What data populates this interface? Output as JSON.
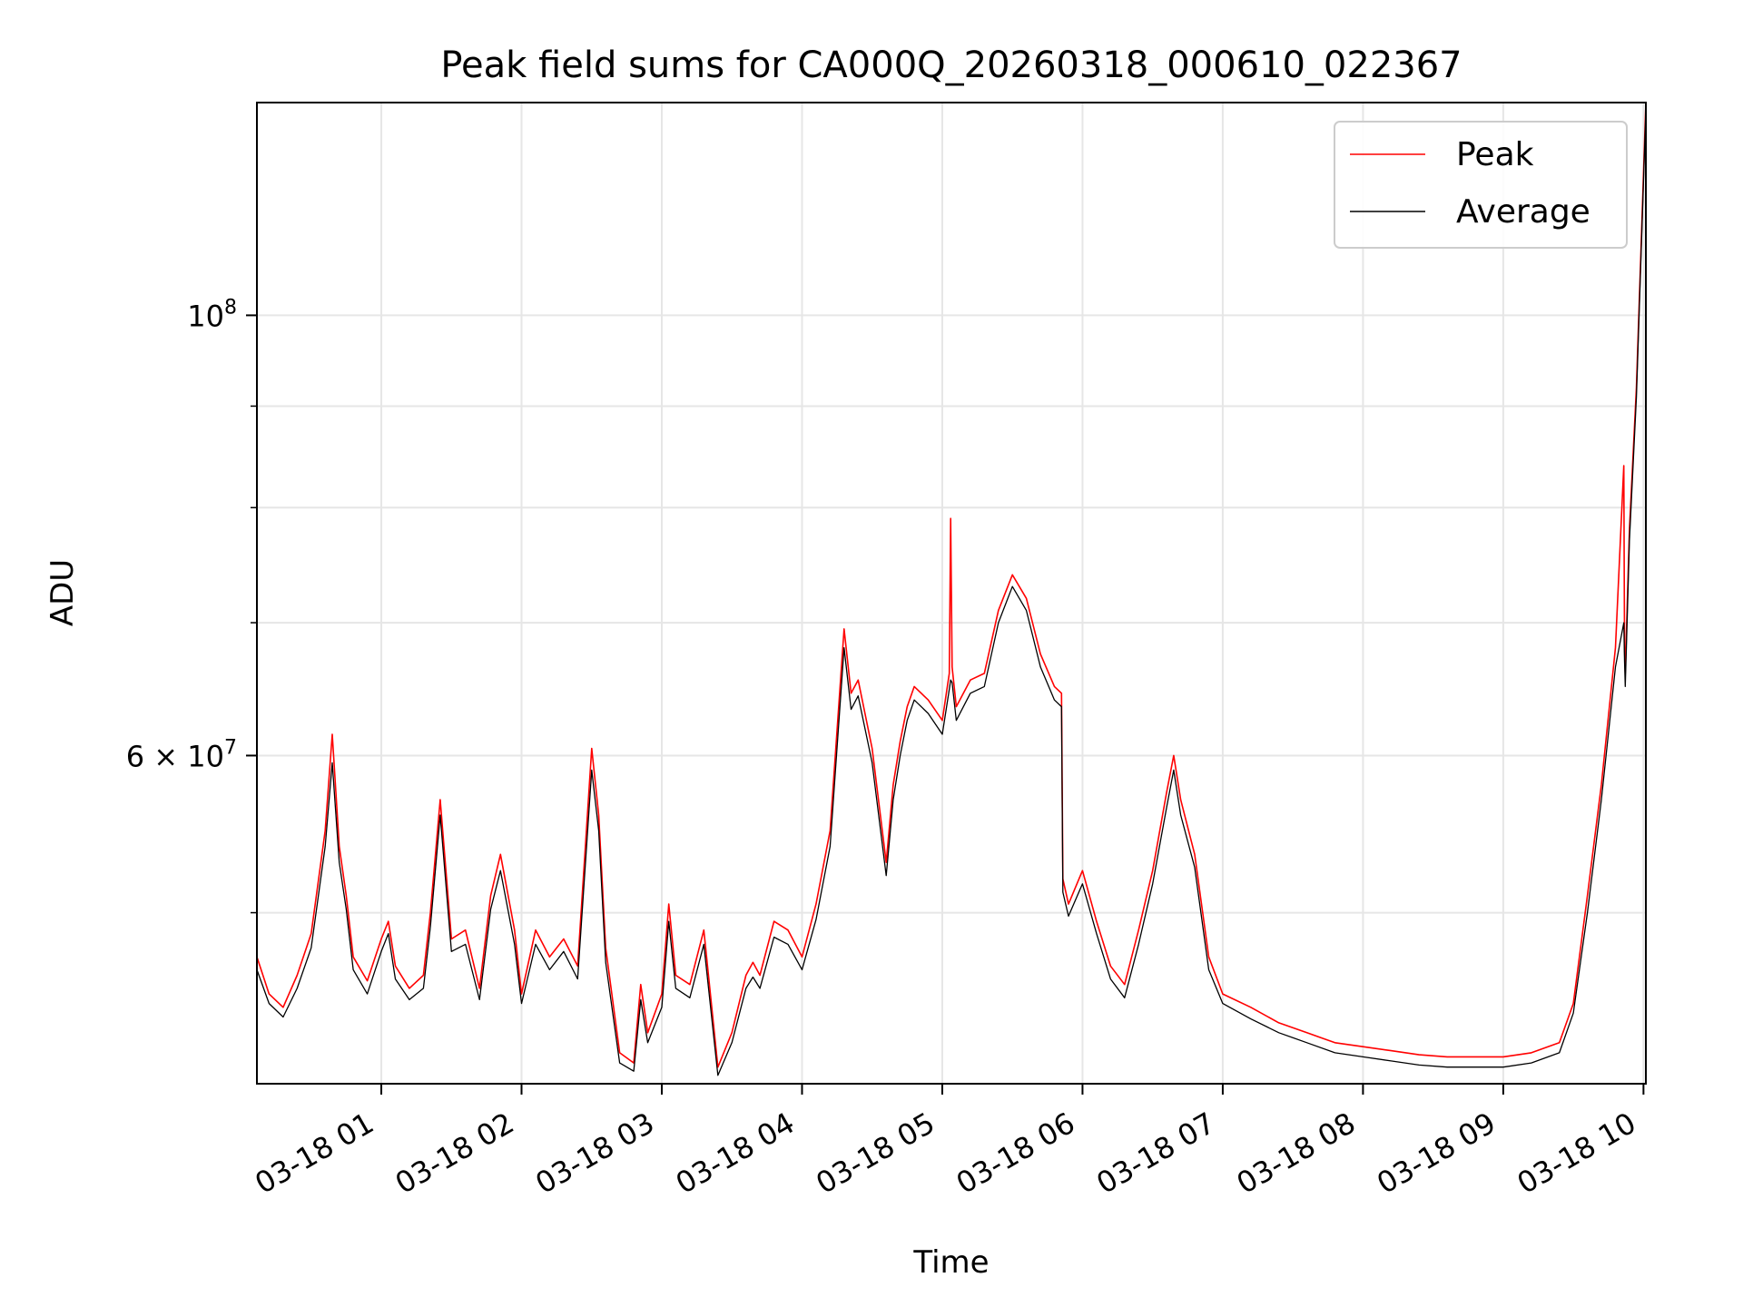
{
  "chart_data": {
    "type": "line",
    "title": "Peak field sums for CA000Q_20260318_000610_022367",
    "xlabel": "Time",
    "ylabel": "ADU",
    "y_scale": "log",
    "ylim": [
      41000000,
      128000000
    ],
    "xlim_hours": [
      0.113,
      10.017
    ],
    "grid": true,
    "legend_position": "upper right",
    "x_ticks": [
      {
        "hour": 1,
        "label": "03-18 01"
      },
      {
        "hour": 2,
        "label": "03-18 02"
      },
      {
        "hour": 3,
        "label": "03-18 03"
      },
      {
        "hour": 4,
        "label": "03-18 04"
      },
      {
        "hour": 5,
        "label": "03-18 05"
      },
      {
        "hour": 6,
        "label": "03-18 06"
      },
      {
        "hour": 7,
        "label": "03-18 07"
      },
      {
        "hour": 8,
        "label": "03-18 08"
      },
      {
        "hour": 9,
        "label": "03-18 09"
      },
      {
        "hour": 10,
        "label": "03-18 10"
      }
    ],
    "y_major_ticks": [
      {
        "value": 60000000,
        "base": "6 × 10",
        "exp": "7"
      },
      {
        "value": 100000000,
        "base": "10",
        "exp": "8"
      }
    ],
    "y_minor_ticks": [
      50000000,
      70000000,
      80000000,
      90000000
    ],
    "series": [
      {
        "name": "Peak",
        "color": "#ff0000",
        "x_hours": [
          0.113,
          0.2,
          0.3,
          0.4,
          0.5,
          0.6,
          0.65,
          0.7,
          0.75,
          0.8,
          0.9,
          1.0,
          1.05,
          1.1,
          1.2,
          1.3,
          1.35,
          1.42,
          1.5,
          1.6,
          1.7,
          1.78,
          1.85,
          1.95,
          2.0,
          2.1,
          2.2,
          2.3,
          2.4,
          2.5,
          2.55,
          2.6,
          2.7,
          2.8,
          2.85,
          2.9,
          3.0,
          3.05,
          3.1,
          3.2,
          3.3,
          3.4,
          3.5,
          3.6,
          3.65,
          3.7,
          3.8,
          3.9,
          4.0,
          4.1,
          4.2,
          4.3,
          4.35,
          4.4,
          4.5,
          4.6,
          4.65,
          4.7,
          4.75,
          4.8,
          4.9,
          5.0,
          5.05,
          5.06,
          5.07,
          5.1,
          5.2,
          5.3,
          5.4,
          5.5,
          5.6,
          5.7,
          5.8,
          5.85,
          5.86,
          5.9,
          6.0,
          6.1,
          6.2,
          6.3,
          6.4,
          6.5,
          6.6,
          6.65,
          6.7,
          6.8,
          6.9,
          7.0,
          7.2,
          7.4,
          7.6,
          7.8,
          8.0,
          8.2,
          8.4,
          8.6,
          8.8,
          9.0,
          9.2,
          9.4,
          9.5,
          9.6,
          9.7,
          9.8,
          9.86,
          9.865,
          9.87,
          9.9,
          9.95,
          10.017
        ],
        "values": [
          47500000,
          45500000,
          44800000,
          46500000,
          48800000,
          55000000,
          61500000,
          54000000,
          51000000,
          47500000,
          46200000,
          48500000,
          49500000,
          47000000,
          45800000,
          46500000,
          50000000,
          57000000,
          48500000,
          49000000,
          45800000,
          51000000,
          53500000,
          49000000,
          45500000,
          49000000,
          47500000,
          48500000,
          47000000,
          60500000,
          56000000,
          48000000,
          42500000,
          42000000,
          46000000,
          43500000,
          45500000,
          50500000,
          46500000,
          46000000,
          49000000,
          41800000,
          43500000,
          46500000,
          47200000,
          46500000,
          49500000,
          49000000,
          47500000,
          50500000,
          55000000,
          69500000,
          64500000,
          65500000,
          60500000,
          53000000,
          58000000,
          61000000,
          63500000,
          65000000,
          64000000,
          62500000,
          66000000,
          79000000,
          66500000,
          63500000,
          65500000,
          66000000,
          71000000,
          74000000,
          72000000,
          67500000,
          65000000,
          64500000,
          52000000,
          50500000,
          52500000,
          49500000,
          47000000,
          46000000,
          49000000,
          52500000,
          57500000,
          60000000,
          57000000,
          53500000,
          47500000,
          45500000,
          44800000,
          44000000,
          43500000,
          43000000,
          42800000,
          42600000,
          42400000,
          42300000,
          42300000,
          42300000,
          42500000,
          43000000,
          45000000,
          51000000,
          58000000,
          68000000,
          84000000,
          68000000,
          66000000,
          78000000,
          92000000,
          128000000
        ]
      },
      {
        "name": "Average",
        "color": "#000000",
        "x_hours": [
          0.113,
          0.2,
          0.3,
          0.4,
          0.5,
          0.6,
          0.65,
          0.7,
          0.75,
          0.8,
          0.9,
          1.0,
          1.05,
          1.1,
          1.2,
          1.3,
          1.35,
          1.42,
          1.5,
          1.6,
          1.7,
          1.78,
          1.85,
          1.95,
          2.0,
          2.1,
          2.2,
          2.3,
          2.4,
          2.5,
          2.55,
          2.6,
          2.7,
          2.8,
          2.85,
          2.9,
          3.0,
          3.05,
          3.1,
          3.2,
          3.3,
          3.4,
          3.5,
          3.6,
          3.65,
          3.7,
          3.8,
          3.9,
          4.0,
          4.1,
          4.2,
          4.3,
          4.35,
          4.4,
          4.5,
          4.6,
          4.65,
          4.7,
          4.75,
          4.8,
          4.9,
          5.0,
          5.05,
          5.06,
          5.07,
          5.1,
          5.2,
          5.3,
          5.4,
          5.5,
          5.6,
          5.7,
          5.8,
          5.85,
          5.86,
          5.9,
          6.0,
          6.1,
          6.2,
          6.3,
          6.4,
          6.5,
          6.6,
          6.65,
          6.7,
          6.8,
          6.9,
          7.0,
          7.2,
          7.4,
          7.6,
          7.8,
          8.0,
          8.2,
          8.4,
          8.6,
          8.8,
          9.0,
          9.2,
          9.4,
          9.5,
          9.6,
          9.7,
          9.8,
          9.86,
          9.865,
          9.87,
          9.9,
          9.95,
          10.017
        ],
        "values": [
          46800000,
          45000000,
          44300000,
          45800000,
          48000000,
          54000000,
          59500000,
          53000000,
          50200000,
          46800000,
          45500000,
          47800000,
          48800000,
          46300000,
          45200000,
          45800000,
          49200000,
          56000000,
          47800000,
          48200000,
          45200000,
          50200000,
          52500000,
          48200000,
          45000000,
          48200000,
          46800000,
          47800000,
          46300000,
          59000000,
          55000000,
          47200000,
          42000000,
          41600000,
          45200000,
          43000000,
          44800000,
          49500000,
          45800000,
          45300000,
          48200000,
          41400000,
          43000000,
          45800000,
          46400000,
          45800000,
          48600000,
          48200000,
          46800000,
          49600000,
          54000000,
          68000000,
          63300000,
          64300000,
          59500000,
          52200000,
          57000000,
          60000000,
          62500000,
          64000000,
          63000000,
          61500000,
          64800000,
          65500000,
          65300000,
          62500000,
          64500000,
          65000000,
          70000000,
          73000000,
          71000000,
          66500000,
          64000000,
          63500000,
          51200000,
          49800000,
          51700000,
          48800000,
          46300000,
          45300000,
          48200000,
          51700000,
          56500000,
          59000000,
          56000000,
          52700000,
          46800000,
          45000000,
          44200000,
          43500000,
          43000000,
          42500000,
          42300000,
          42100000,
          41900000,
          41800000,
          41800000,
          41800000,
          42000000,
          42500000,
          44500000,
          50000000,
          57000000,
          66500000,
          70000000,
          67000000,
          65000000,
          77000000,
          91000000,
          127000000
        ]
      }
    ]
  }
}
